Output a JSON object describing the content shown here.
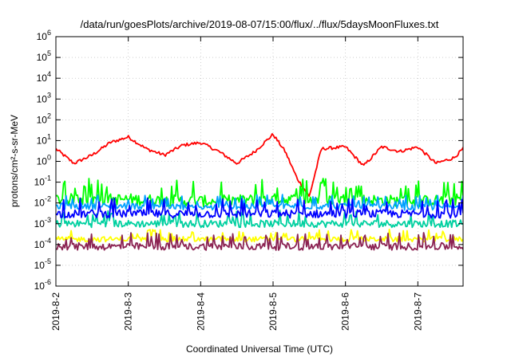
{
  "chart_data": {
    "type": "line",
    "title": "/data/run/goesPlots/archive/2019-08-07/15:00/flux/../flux/5daysMoonFluxes.txt",
    "xlabel": "Coordinated Universal Time (UTC)",
    "ylabel": "protons/cm²-s-sr-MeV",
    "y_scale": "log",
    "ylim": [
      1e-06,
      1000000.0
    ],
    "y_ticks": [
      {
        "base": "10",
        "exp": "-6"
      },
      {
        "base": "10",
        "exp": "-5"
      },
      {
        "base": "10",
        "exp": "-4"
      },
      {
        "base": "10",
        "exp": "-3"
      },
      {
        "base": "10",
        "exp": "-2"
      },
      {
        "base": "10",
        "exp": "-1"
      },
      {
        "base": "10",
        "exp": "0"
      },
      {
        "base": "10",
        "exp": "1"
      },
      {
        "base": "10",
        "exp": "2"
      },
      {
        "base": "10",
        "exp": "3"
      },
      {
        "base": "10",
        "exp": "4"
      },
      {
        "base": "10",
        "exp": "5"
      },
      {
        "base": "10",
        "exp": "6"
      }
    ],
    "xlim": [
      "2019-08-02 00:00",
      "2019-08-07 15:00"
    ],
    "x_ticks": [
      "2019-8-2",
      "2019-8-3",
      "2019-8-4",
      "2019-8-5",
      "2019-8-6",
      "2019-8-7"
    ],
    "grid": true,
    "series": [
      {
        "color": "#ff0000",
        "x": [
          "2019-08-02 00:00",
          "2019-08-02 06:00",
          "2019-08-02 12:00",
          "2019-08-02 18:00",
          "2019-08-03 00:00",
          "2019-08-03 06:00",
          "2019-08-03 12:00",
          "2019-08-03 18:00",
          "2019-08-04 00:00",
          "2019-08-04 06:00",
          "2019-08-04 12:00",
          "2019-08-04 18:00",
          "2019-08-05 00:00",
          "2019-08-05 04:00",
          "2019-08-05 08:00",
          "2019-08-05 12:00",
          "2019-08-05 16:00",
          "2019-08-06 00:00",
          "2019-08-06 06:00",
          "2019-08-06 12:00",
          "2019-08-06 18:00",
          "2019-08-07 00:00",
          "2019-08-07 06:00",
          "2019-08-07 12:00",
          "2019-08-07 15:00"
        ],
        "values": [
          4,
          0.8,
          2,
          8,
          15,
          4,
          2,
          6,
          8,
          3,
          0.8,
          3,
          20,
          3,
          0.15,
          0.02,
          4,
          5,
          0.6,
          5,
          3,
          5,
          0.8,
          1.5,
          4
        ]
      },
      {
        "color": "#00ff00",
        "x": [
          "2019-08-02 00:00",
          "2019-08-03 00:00",
          "2019-08-04 00:00",
          "2019-08-05 00:00",
          "2019-08-06 00:00",
          "2019-08-07 00:00",
          "2019-08-07 15:00"
        ],
        "values": [
          0.015,
          0.015,
          0.012,
          0.015,
          0.015,
          0.012,
          0.015
        ]
      },
      {
        "color": "#00d0a0",
        "x": [
          "2019-08-02 00:00",
          "2019-08-03 00:00",
          "2019-08-04 00:00",
          "2019-08-05 00:00",
          "2019-08-06 00:00",
          "2019-08-07 00:00",
          "2019-08-07 15:00"
        ],
        "values": [
          0.001,
          0.001,
          0.001,
          0.001,
          0.001,
          0.001,
          0.001
        ]
      },
      {
        "color": "#00a0ff",
        "x": [
          "2019-08-02 00:00",
          "2019-08-03 00:00",
          "2019-08-04 00:00",
          "2019-08-05 00:00",
          "2019-08-06 00:00",
          "2019-08-07 00:00",
          "2019-08-07 15:00"
        ],
        "values": [
          0.007,
          0.007,
          0.006,
          0.007,
          0.007,
          0.006,
          0.007
        ]
      },
      {
        "color": "#0000ff",
        "x": [
          "2019-08-02 00:00",
          "2019-08-03 00:00",
          "2019-08-04 00:00",
          "2019-08-05 00:00",
          "2019-08-06 00:00",
          "2019-08-07 00:00",
          "2019-08-07 15:00"
        ],
        "values": [
          0.003,
          0.003,
          0.003,
          0.003,
          0.003,
          0.003,
          0.003
        ]
      },
      {
        "color": "#ffff00",
        "x": [
          "2019-08-02 00:00",
          "2019-08-03 00:00",
          "2019-08-04 00:00",
          "2019-08-05 00:00",
          "2019-08-06 00:00",
          "2019-08-07 00:00",
          "2019-08-07 15:00"
        ],
        "values": [
          0.00018,
          0.00018,
          0.00018,
          0.00018,
          0.00018,
          0.00018,
          0.00018
        ]
      },
      {
        "color": "#8b2252",
        "x": [
          "2019-08-02 00:00",
          "2019-08-03 00:00",
          "2019-08-04 00:00",
          "2019-08-05 00:00",
          "2019-08-06 00:00",
          "2019-08-07 00:00",
          "2019-08-07 15:00"
        ],
        "values": [
          8e-05,
          8e-05,
          8e-05,
          8e-05,
          8e-05,
          8e-05,
          8e-05
        ]
      }
    ]
  }
}
